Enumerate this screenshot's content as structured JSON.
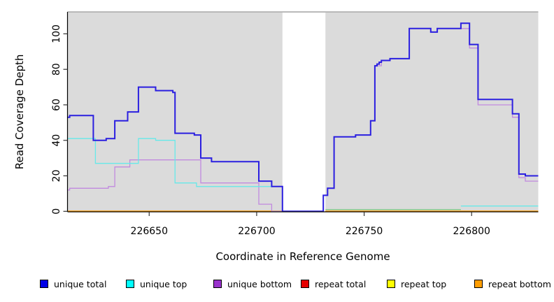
{
  "chart_data": {
    "type": "line",
    "subtype": "step-coverage-plot",
    "title": "",
    "xlabel": "Coordinate in Reference Genome",
    "ylabel": "Read Coverage Depth",
    "xlim": [
      226612,
      226831
    ],
    "ylim": [
      0,
      111
    ],
    "xticks": [
      "226650",
      "226700",
      "226750",
      "226800"
    ],
    "xtick_values": [
      226650,
      226700,
      226750,
      226800
    ],
    "yticks": [
      "0",
      "20",
      "40",
      "60",
      "80",
      "100"
    ],
    "ytick_values": [
      0,
      20,
      40,
      60,
      80,
      100
    ],
    "grid": false,
    "panel_bg": "#DBDBDB",
    "no_data_gap": {
      "x_start": 226712,
      "x_end": 226732
    },
    "legend_position": "bottom",
    "series": [
      {
        "name": "unique total",
        "swatch_color": "#0000E6",
        "line_color": "#2B1FE0",
        "width": 2,
        "segments": [
          [
            [
              226612,
              53
            ],
            [
              226613,
              54
            ],
            [
              226624,
              40
            ],
            [
              226630,
              41
            ],
            [
              226634,
              51
            ],
            [
              226640,
              56
            ],
            [
              226645,
              70
            ],
            [
              226653,
              68
            ],
            [
              226661,
              67
            ],
            [
              226662,
              44
            ],
            [
              226671,
              43
            ],
            [
              226674,
              30
            ],
            [
              226679,
              28
            ],
            [
              226701,
              17
            ],
            [
              226707,
              14
            ],
            [
              226712,
              0
            ],
            [
              226731,
              9
            ],
            [
              226733,
              13
            ],
            [
              226736,
              42
            ],
            [
              226746,
              43
            ],
            [
              226753,
              51
            ],
            [
              226755,
              82
            ],
            [
              226756,
              83
            ],
            [
              226757,
              84
            ],
            [
              226758,
              85
            ],
            [
              226762,
              86
            ],
            [
              226771,
              103
            ],
            [
              226781,
              101
            ],
            [
              226784,
              103
            ],
            [
              226795,
              106
            ],
            [
              226799,
              94
            ],
            [
              226803,
              63
            ],
            [
              226819,
              55
            ],
            [
              226822,
              21
            ],
            [
              226825,
              20
            ],
            [
              226831,
              20
            ]
          ]
        ]
      },
      {
        "name": "unique top",
        "swatch_color": "#00FFFF",
        "line_color": "#67E9E9",
        "width": 1.3,
        "segments": [
          [
            [
              226612,
              41
            ],
            [
              226625,
              27
            ],
            [
              226645,
              41
            ],
            [
              226653,
              40
            ],
            [
              226662,
              16
            ],
            [
              226672,
              14
            ],
            [
              226712,
              0
            ]
          ],
          [
            [
              226795,
              3
            ],
            [
              226831,
              3
            ]
          ]
        ]
      },
      {
        "name": "unique bottom",
        "swatch_color": "#9932CC",
        "line_color": "#C18ADF",
        "width": 1.3,
        "segments": [
          [
            [
              226612,
              12
            ],
            [
              226613,
              13
            ],
            [
              226631,
              14
            ],
            [
              226634,
              25
            ],
            [
              226641,
              29
            ],
            [
              226674,
              16
            ],
            [
              226701,
              4
            ],
            [
              226707,
              0
            ],
            [
              226731,
              9
            ],
            [
              226733,
              13
            ],
            [
              226736,
              42
            ],
            [
              226746,
              43
            ],
            [
              226753,
              51
            ],
            [
              226755,
              82
            ],
            [
              226758,
              85
            ],
            [
              226762,
              86
            ],
            [
              226771,
              103
            ],
            [
              226781,
              101
            ],
            [
              226784,
              103
            ],
            [
              226795,
              103
            ],
            [
              226799,
              92
            ],
            [
              226803,
              60
            ],
            [
              226819,
              53
            ],
            [
              226822,
              19
            ],
            [
              226825,
              17
            ],
            [
              226831,
              17
            ]
          ]
        ]
      },
      {
        "name": "repeat total",
        "swatch_color": "#E60000",
        "line_color": "#E60000",
        "width": 1,
        "segments": [
          [
            [
              226612,
              0
            ],
            [
              226712,
              0
            ]
          ],
          [
            [
              226732,
              0
            ],
            [
              226831,
              0
            ]
          ]
        ]
      },
      {
        "name": "repeat top",
        "swatch_color": "#FFFF00",
        "line_color": "#FFFF00",
        "width": 1,
        "segments": [
          [
            [
              226612,
              0
            ],
            [
              226712,
              0
            ]
          ],
          [
            [
              226732,
              0
            ],
            [
              226831,
              0
            ]
          ]
        ]
      },
      {
        "name": "repeat bottom",
        "swatch_color": "#FF9D00",
        "line_color": "#FF9D00",
        "width": 2,
        "segments": [
          [
            [
              226612,
              0
            ],
            [
              226712,
              0
            ]
          ],
          [
            [
              226732,
              0
            ],
            [
              226831,
              0
            ]
          ]
        ]
      }
    ],
    "overlap_artifact": {
      "color": "#7EC87E",
      "x_start": 226732,
      "x_end": 226795,
      "y": 1,
      "note": "zero-level lines overlap appearing green right of the gap"
    }
  }
}
